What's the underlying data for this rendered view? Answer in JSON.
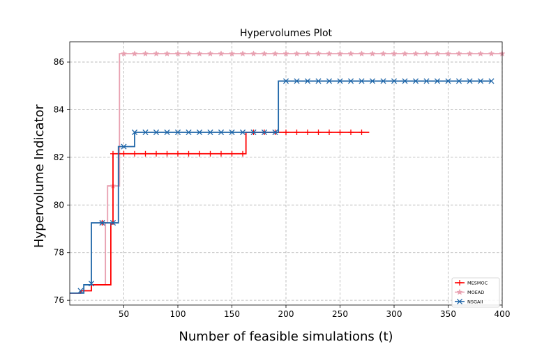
{
  "chart_data": {
    "type": "line",
    "title": "Hypervolumes Plot",
    "xlabel": "Number of feasible simulations (t)",
    "ylabel": "Hypervolume Indicator",
    "xlim": [
      0,
      400
    ],
    "ylim": [
      75.8,
      86.85
    ],
    "xticks": [
      50,
      100,
      150,
      200,
      250,
      300,
      350,
      400
    ],
    "yticks": [
      76,
      78,
      80,
      82,
      84,
      86
    ],
    "grid": true,
    "legend_position": "lower-right",
    "series": [
      {
        "name": "MESMOC",
        "color": "#ff0000",
        "marker": "plus",
        "step_x": [
          0,
          10,
          20,
          38,
          40,
          162,
          163,
          277
        ],
        "step_y": [
          76.3,
          76.4,
          76.65,
          79.2,
          82.15,
          82.15,
          83.05,
          83.05
        ],
        "x": [
          30,
          40,
          50,
          60,
          70,
          80,
          90,
          100,
          110,
          120,
          130,
          140,
          150,
          160,
          170,
          180,
          190,
          200,
          210,
          220,
          230,
          240,
          250,
          260,
          270
        ],
        "y": [
          79.25,
          82.15,
          82.15,
          82.15,
          82.15,
          82.15,
          82.15,
          82.15,
          82.15,
          82.15,
          82.15,
          82.15,
          82.15,
          82.15,
          83.05,
          83.05,
          83.05,
          83.05,
          83.05,
          83.05,
          83.05,
          83.05,
          83.05,
          83.05,
          83.05
        ]
      },
      {
        "name": "MOEAD",
        "color": "#e8a0b0",
        "marker": "star",
        "step_x": [
          0,
          10,
          20,
          33,
          35,
          44,
          46,
          400
        ],
        "step_y": [
          76.3,
          76.4,
          76.65,
          79.25,
          80.8,
          80.8,
          86.35,
          86.35
        ],
        "x": [
          30,
          40,
          50,
          60,
          70,
          80,
          90,
          100,
          110,
          120,
          130,
          140,
          150,
          160,
          170,
          180,
          190,
          200,
          210,
          220,
          230,
          240,
          250,
          260,
          270,
          280,
          290,
          300,
          310,
          320,
          330,
          340,
          350,
          360,
          370,
          380,
          390,
          400
        ],
        "y": [
          79.25,
          80.8,
          86.35,
          86.35,
          86.35,
          86.35,
          86.35,
          86.35,
          86.35,
          86.35,
          86.35,
          86.35,
          86.35,
          86.35,
          86.35,
          86.35,
          86.35,
          86.35,
          86.35,
          86.35,
          86.35,
          86.35,
          86.35,
          86.35,
          86.35,
          86.35,
          86.35,
          86.35,
          86.35,
          86.35,
          86.35,
          86.35,
          86.35,
          86.35,
          86.35,
          86.35,
          86.35,
          86.35
        ]
      },
      {
        "name": "NSGAII",
        "color": "#1f66a8",
        "marker": "x",
        "step_x": [
          0,
          8,
          13,
          19,
          20,
          44,
          45,
          58,
          60,
          192,
          193,
          390
        ],
        "step_y": [
          76.3,
          76.3,
          76.65,
          76.65,
          79.25,
          79.25,
          82.45,
          82.45,
          83.05,
          83.05,
          85.2,
          85.2
        ],
        "x": [
          10,
          20,
          30,
          40,
          50,
          60,
          70,
          80,
          90,
          100,
          110,
          120,
          130,
          140,
          150,
          160,
          170,
          180,
          190,
          200,
          210,
          220,
          230,
          240,
          250,
          260,
          270,
          280,
          290,
          300,
          310,
          320,
          330,
          340,
          350,
          360,
          370,
          380,
          390
        ],
        "y": [
          76.4,
          76.7,
          79.25,
          79.25,
          82.45,
          83.05,
          83.05,
          83.05,
          83.05,
          83.05,
          83.05,
          83.05,
          83.05,
          83.05,
          83.05,
          83.05,
          83.05,
          83.05,
          83.05,
          85.2,
          85.2,
          85.2,
          85.2,
          85.2,
          85.2,
          85.2,
          85.2,
          85.2,
          85.2,
          85.2,
          85.2,
          85.2,
          85.2,
          85.2,
          85.2,
          85.2,
          85.2,
          85.2,
          85.2
        ]
      }
    ]
  }
}
